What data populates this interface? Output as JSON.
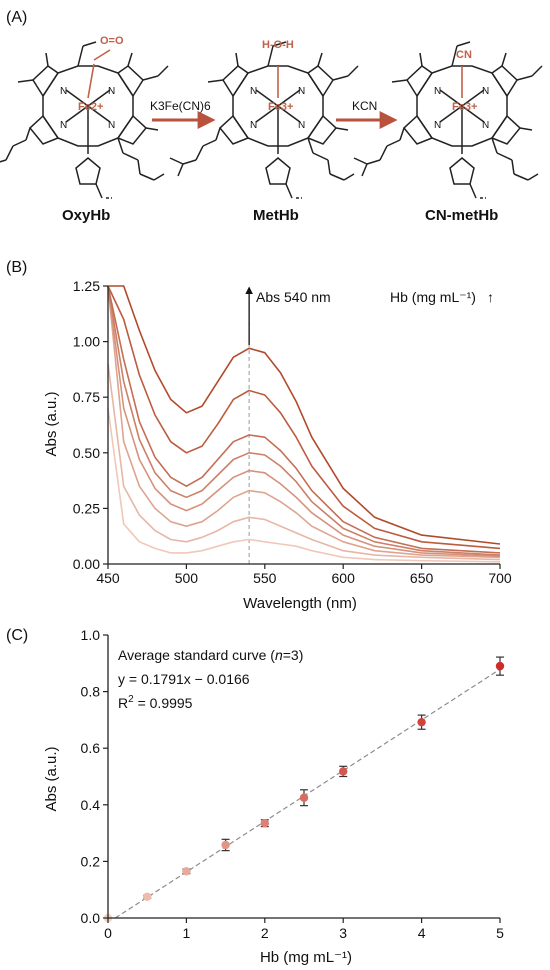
{
  "panel_labels": {
    "a": "(A)",
    "b": "(B)",
    "c": "(C)"
  },
  "colors": {
    "accent": "#c0624a",
    "arrow": "#b9523c",
    "axis": "#222222",
    "fit_line": "#8c8c8c"
  },
  "scheme": {
    "reagent1": "K3Fe(CN)6",
    "reagent2": "KCN",
    "molecules": [
      {
        "name": "OxyHb",
        "ligand": "O=O",
        "metal": "Fe2+"
      },
      {
        "name": "MetHb",
        "ligand": "H-O-H",
        "metal": "Fe3+"
      },
      {
        "name": "CN-metHb",
        "ligand": "CN",
        "metal": "Fe3+"
      }
    ]
  },
  "chart_data": [
    {
      "type": "line",
      "xlabel": "Wavelength (nm)",
      "ylabel": "Abs (a.u.)",
      "xlim": [
        450,
        700
      ],
      "ylim": [
        0,
        1.25
      ],
      "xticks": [
        450,
        500,
        550,
        600,
        650,
        700
      ],
      "yticks": [
        "0.00",
        "0.25",
        "0.50",
        "0.75",
        "1.00",
        "1.25"
      ],
      "annotations": {
        "peak_label": "Abs 540 nm",
        "peak_x": 540,
        "legend": "Hb (mg mL⁻¹)",
        "legend_arrow": "↑"
      },
      "series": [
        {
          "values": [
            [
              450,
              0.7
            ],
            [
              460,
              0.18
            ],
            [
              470,
              0.1
            ],
            [
              480,
              0.07
            ],
            [
              490,
              0.05
            ],
            [
              500,
              0.05
            ],
            [
              510,
              0.06
            ],
            [
              520,
              0.08
            ],
            [
              530,
              0.1
            ],
            [
              540,
              0.11
            ],
            [
              550,
              0.1
            ],
            [
              560,
              0.09
            ],
            [
              570,
              0.08
            ],
            [
              580,
              0.06
            ],
            [
              600,
              0.03
            ],
            [
              620,
              0.02
            ],
            [
              650,
              0.015
            ],
            [
              700,
              0.01
            ]
          ]
        },
        {
          "values": [
            [
              450,
              0.9
            ],
            [
              460,
              0.35
            ],
            [
              470,
              0.22
            ],
            [
              480,
              0.15
            ],
            [
              490,
              0.11
            ],
            [
              500,
              0.1
            ],
            [
              510,
              0.12
            ],
            [
              520,
              0.15
            ],
            [
              530,
              0.19
            ],
            [
              540,
              0.21
            ],
            [
              550,
              0.2
            ],
            [
              560,
              0.17
            ],
            [
              570,
              0.14
            ],
            [
              580,
              0.11
            ],
            [
              600,
              0.06
            ],
            [
              620,
              0.04
            ],
            [
              650,
              0.03
            ],
            [
              700,
              0.02
            ]
          ]
        },
        {
          "values": [
            [
              450,
              1.25
            ],
            [
              460,
              0.55
            ],
            [
              470,
              0.35
            ],
            [
              480,
              0.25
            ],
            [
              490,
              0.19
            ],
            [
              500,
              0.17
            ],
            [
              510,
              0.19
            ],
            [
              520,
              0.24
            ],
            [
              530,
              0.3
            ],
            [
              540,
              0.33
            ],
            [
              550,
              0.32
            ],
            [
              560,
              0.28
            ],
            [
              570,
              0.23
            ],
            [
              580,
              0.17
            ],
            [
              600,
              0.1
            ],
            [
              620,
              0.06
            ],
            [
              650,
              0.04
            ],
            [
              700,
              0.03
            ]
          ]
        },
        {
          "values": [
            [
              450,
              1.25
            ],
            [
              460,
              0.7
            ],
            [
              470,
              0.47
            ],
            [
              480,
              0.34
            ],
            [
              490,
              0.27
            ],
            [
              500,
              0.24
            ],
            [
              510,
              0.27
            ],
            [
              520,
              0.33
            ],
            [
              530,
              0.39
            ],
            [
              540,
              0.42
            ],
            [
              550,
              0.41
            ],
            [
              560,
              0.36
            ],
            [
              570,
              0.3
            ],
            [
              580,
              0.23
            ],
            [
              600,
              0.13
            ],
            [
              620,
              0.08
            ],
            [
              650,
              0.05
            ],
            [
              700,
              0.035
            ]
          ]
        },
        {
          "values": [
            [
              450,
              1.25
            ],
            [
              460,
              0.82
            ],
            [
              470,
              0.56
            ],
            [
              480,
              0.41
            ],
            [
              490,
              0.33
            ],
            [
              500,
              0.3
            ],
            [
              510,
              0.33
            ],
            [
              520,
              0.4
            ],
            [
              530,
              0.47
            ],
            [
              540,
              0.5
            ],
            [
              550,
              0.49
            ],
            [
              560,
              0.44
            ],
            [
              570,
              0.37
            ],
            [
              580,
              0.28
            ],
            [
              600,
              0.16
            ],
            [
              620,
              0.1
            ],
            [
              650,
              0.06
            ],
            [
              700,
              0.04
            ]
          ]
        },
        {
          "values": [
            [
              450,
              1.25
            ],
            [
              460,
              0.92
            ],
            [
              470,
              0.64
            ],
            [
              480,
              0.48
            ],
            [
              490,
              0.39
            ],
            [
              500,
              0.35
            ],
            [
              510,
              0.39
            ],
            [
              520,
              0.47
            ],
            [
              530,
              0.55
            ],
            [
              540,
              0.58
            ],
            [
              550,
              0.57
            ],
            [
              560,
              0.51
            ],
            [
              570,
              0.43
            ],
            [
              580,
              0.33
            ],
            [
              600,
              0.19
            ],
            [
              620,
              0.12
            ],
            [
              650,
              0.07
            ],
            [
              700,
              0.05
            ]
          ]
        },
        {
          "values": [
            [
              450,
              1.25
            ],
            [
              460,
              1.1
            ],
            [
              470,
              0.85
            ],
            [
              480,
              0.67
            ],
            [
              490,
              0.55
            ],
            [
              500,
              0.5
            ],
            [
              510,
              0.53
            ],
            [
              520,
              0.63
            ],
            [
              530,
              0.74
            ],
            [
              540,
              0.78
            ],
            [
              550,
              0.76
            ],
            [
              560,
              0.68
            ],
            [
              570,
              0.57
            ],
            [
              580,
              0.44
            ],
            [
              600,
              0.26
            ],
            [
              620,
              0.16
            ],
            [
              650,
              0.1
            ],
            [
              700,
              0.07
            ]
          ]
        },
        {
          "values": [
            [
              450,
              1.25
            ],
            [
              460,
              1.25
            ],
            [
              470,
              1.05
            ],
            [
              480,
              0.87
            ],
            [
              490,
              0.74
            ],
            [
              500,
              0.68
            ],
            [
              510,
              0.71
            ],
            [
              520,
              0.82
            ],
            [
              530,
              0.93
            ],
            [
              540,
              0.97
            ],
            [
              550,
              0.95
            ],
            [
              560,
              0.86
            ],
            [
              570,
              0.73
            ],
            [
              580,
              0.57
            ],
            [
              600,
              0.34
            ],
            [
              620,
              0.21
            ],
            [
              650,
              0.13
            ],
            [
              700,
              0.09
            ]
          ]
        }
      ]
    },
    {
      "type": "scatter",
      "xlabel": "Hb (mg mL⁻¹)",
      "ylabel": "Abs (a.u.)",
      "xlim": [
        0,
        5
      ],
      "ylim": [
        0,
        1.0
      ],
      "xticks": [
        "0",
        "1",
        "2",
        "3",
        "4",
        "5"
      ],
      "yticks": [
        "0.0",
        "0.2",
        "0.4",
        "0.6",
        "0.8",
        "1.0"
      ],
      "annotations": {
        "line1": "Average standard curve (",
        "n_italic": "n",
        "line1_end": "=3)",
        "equation": "y = 0.1791x − 0.0166",
        "r2_base": "R",
        "r2_sup": "2",
        "r2_rest": " = 0.9995"
      },
      "fit": {
        "slope": 0.1791,
        "intercept": -0.0166
      },
      "points": [
        {
          "x": 0,
          "y": 0.0,
          "err": 0.0
        },
        {
          "x": 0.5,
          "y": 0.075,
          "err": 0.005
        },
        {
          "x": 1.0,
          "y": 0.165,
          "err": 0.008
        },
        {
          "x": 1.5,
          "y": 0.258,
          "err": 0.02
        },
        {
          "x": 2.0,
          "y": 0.335,
          "err": 0.012
        },
        {
          "x": 2.5,
          "y": 0.425,
          "err": 0.028
        },
        {
          "x": 3.0,
          "y": 0.518,
          "err": 0.018
        },
        {
          "x": 4.0,
          "y": 0.692,
          "err": 0.025
        },
        {
          "x": 5.0,
          "y": 0.89,
          "err": 0.032
        }
      ]
    }
  ]
}
